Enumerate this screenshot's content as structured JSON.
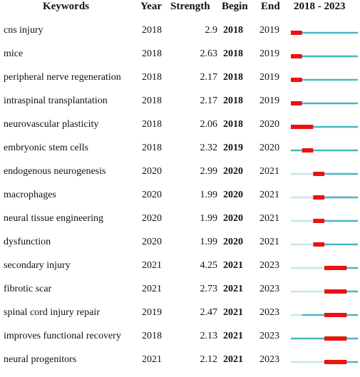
{
  "headers": {
    "keywords": "Keywords",
    "year": "Year",
    "strength": "Strength",
    "begin": "Begin",
    "end": "End",
    "range": "2018 - 2023"
  },
  "colors": {
    "burst": "#ee1111",
    "active": "#45b7c1",
    "inactive": "#c6e6ec"
  },
  "chart_data": {
    "type": "table",
    "timeline": {
      "start": 2018,
      "end": 2023
    },
    "rows": [
      {
        "keyword": "cns injury",
        "year": "2018",
        "strength": "2.9",
        "begin": "2018",
        "end": "2019"
      },
      {
        "keyword": "mice",
        "year": "2018",
        "strength": "2.63",
        "begin": "2018",
        "end": "2019"
      },
      {
        "keyword": "peripheral nerve regeneration",
        "year": "2018",
        "strength": "2.17",
        "begin": "2018",
        "end": "2019"
      },
      {
        "keyword": "intraspinal transplantation",
        "year": "2018",
        "strength": "2.17",
        "begin": "2018",
        "end": "2019"
      },
      {
        "keyword": "neurovascular plasticity",
        "year": "2018",
        "strength": "2.06",
        "begin": "2018",
        "end": "2020"
      },
      {
        "keyword": "embryonic stem cells",
        "year": "2018",
        "strength": "2.32",
        "begin": "2019",
        "end": "2020"
      },
      {
        "keyword": "endogenous neurogenesis",
        "year": "2020",
        "strength": "2.99",
        "begin": "2020",
        "end": "2021"
      },
      {
        "keyword": "macrophages",
        "year": "2020",
        "strength": "1.99",
        "begin": "2020",
        "end": "2021"
      },
      {
        "keyword": "neural tissue engineering",
        "year": "2020",
        "strength": "1.99",
        "begin": "2020",
        "end": "2021"
      },
      {
        "keyword": "dysfunction",
        "year": "2020",
        "strength": "1.99",
        "begin": "2020",
        "end": "2021"
      },
      {
        "keyword": "secondary injury",
        "year": "2021",
        "strength": "4.25",
        "begin": "2021",
        "end": "2023"
      },
      {
        "keyword": "fibrotic scar",
        "year": "2021",
        "strength": "2.73",
        "begin": "2021",
        "end": "2023"
      },
      {
        "keyword": "spinal cord injury repair",
        "year": "2019",
        "strength": "2.47",
        "begin": "2021",
        "end": "2023"
      },
      {
        "keyword": "improves functional recovery",
        "year": "2018",
        "strength": "2.13",
        "begin": "2021",
        "end": "2023"
      },
      {
        "keyword": "neural progenitors",
        "year": "2021",
        "strength": "2.12",
        "begin": "2021",
        "end": "2023"
      }
    ]
  }
}
